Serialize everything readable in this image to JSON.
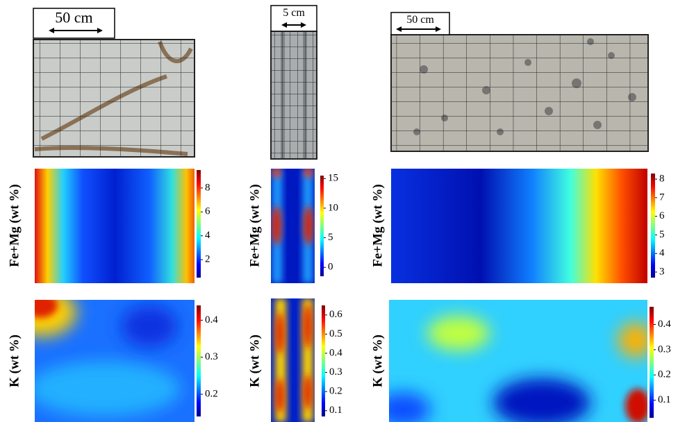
{
  "columns": [
    {
      "scale_label": "50 cm",
      "maps": [
        {
          "label": "Fe+Mg (wt %)",
          "colorbar": {
            "lim": [
              0.5,
              9.5
            ],
            "ticks": [
              2,
              4,
              6,
              8
            ]
          }
        },
        {
          "label": "K (wt %)",
          "colorbar": {
            "lim": [
              0.14,
              0.44
            ],
            "ticks": [
              0.2,
              0.3,
              0.4
            ]
          }
        }
      ]
    },
    {
      "scale_label": "5 cm",
      "maps": [
        {
          "label": "Fe+Mg (wt %)",
          "colorbar": {
            "lim": [
              -1.5,
              15.5
            ],
            "ticks": [
              0,
              5,
              10,
              15
            ]
          }
        },
        {
          "label": "K (wt %)",
          "colorbar": {
            "lim": [
              0.07,
              0.65
            ],
            "ticks": [
              0.1,
              0.2,
              0.3,
              0.4,
              0.5,
              0.6
            ]
          }
        }
      ]
    },
    {
      "scale_label": "50 cm",
      "maps": [
        {
          "label": "Fe+Mg (wt %)",
          "colorbar": {
            "lim": [
              2.7,
              8.3
            ],
            "ticks": [
              3,
              4,
              5,
              6,
              7,
              8
            ]
          }
        },
        {
          "label": "K (wt %)",
          "colorbar": {
            "lim": [
              0.03,
              0.47
            ],
            "ticks": [
              0.1,
              0.2,
              0.3,
              0.4
            ]
          }
        }
      ]
    }
  ]
}
